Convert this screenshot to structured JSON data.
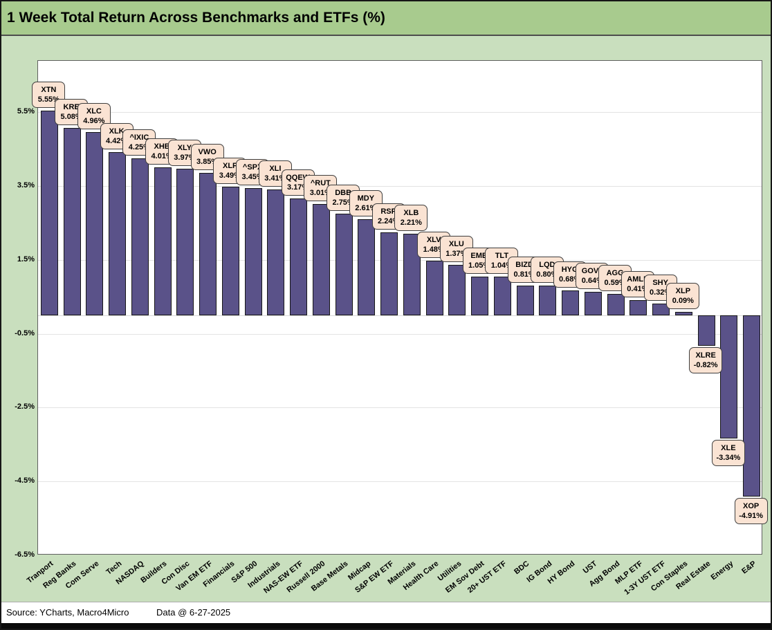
{
  "window": {
    "title": "1 Week Total Return Across Benchmarks and ETFs (%)"
  },
  "footer": {
    "source": "Source: YCharts, Macro4Micro",
    "data_date": "Data @ 6-27-2025"
  },
  "colors": {
    "title_bg": "#a8cb8e",
    "page_bg": "#c9dfbe",
    "plot_bg": "#ffffff",
    "bar_fill": "#5a5289",
    "bar_border": "#161616",
    "callout_bg": "#fae3d3",
    "callout_border": "#3e3e3e",
    "gridline": "#e3e3e3",
    "text": "#000000"
  },
  "chart_data": {
    "type": "bar",
    "title": "1 Week Total Return Across Benchmarks and ETFs (%)",
    "xlabel": "",
    "ylabel": "",
    "ylim": [
      -6.5,
      6.9
    ],
    "grid": true,
    "legend": false,
    "y_ticks": [
      {
        "label": "5.5%",
        "value": 5.5
      },
      {
        "label": "3.5%",
        "value": 3.5
      },
      {
        "label": "1.5%",
        "value": 1.5
      },
      {
        "label": "-0.5%",
        "value": -0.5
      },
      {
        "label": "-2.5%",
        "value": -2.5
      },
      {
        "label": "-4.5%",
        "value": -4.5
      },
      {
        "label": "-6.5%",
        "value": -6.5
      }
    ],
    "points": [
      {
        "category": "Tranport",
        "ticker": "XTN",
        "value": 5.55,
        "label": "5.55%"
      },
      {
        "category": "Reg Banks",
        "ticker": "KRE",
        "value": 5.08,
        "label": "5.08%"
      },
      {
        "category": "Com Serve",
        "ticker": "XLC",
        "value": 4.96,
        "label": "4.96%"
      },
      {
        "category": "Tech",
        "ticker": "XLK",
        "value": 4.42,
        "label": "4.42%"
      },
      {
        "category": "NASDAQ",
        "ticker": "^IXIC",
        "value": 4.25,
        "label": "4.25%"
      },
      {
        "category": "Builders",
        "ticker": "XHB",
        "value": 4.01,
        "label": "4.01%"
      },
      {
        "category": "Con Disc",
        "ticker": "XLY",
        "value": 3.97,
        "label": "3.97%"
      },
      {
        "category": "Van EM ETF",
        "ticker": "VWO",
        "value": 3.85,
        "label": "3.85%"
      },
      {
        "category": "Financials",
        "ticker": "XLF",
        "value": 3.49,
        "label": "3.49%"
      },
      {
        "category": "S&P 500",
        "ticker": "^SPX",
        "value": 3.45,
        "label": "3.45%"
      },
      {
        "category": "Industrials",
        "ticker": "XLI",
        "value": 3.41,
        "label": "3.41%"
      },
      {
        "category": "NAS-EW ETF",
        "ticker": "QQEW",
        "value": 3.17,
        "label": "3.17%"
      },
      {
        "category": "Russell 2000",
        "ticker": "^RUT",
        "value": 3.01,
        "label": "3.01%"
      },
      {
        "category": "Base Metals",
        "ticker": "DBB",
        "value": 2.75,
        "label": "2.75%"
      },
      {
        "category": "Midcap",
        "ticker": "MDY",
        "value": 2.61,
        "label": "2.61%"
      },
      {
        "category": "S&P EW ETF",
        "ticker": "RSP",
        "value": 2.24,
        "label": "2.24%"
      },
      {
        "category": "Materials",
        "ticker": "XLB",
        "value": 2.21,
        "label": "2.21%"
      },
      {
        "category": "Health Care",
        "ticker": "XLV",
        "value": 1.48,
        "label": "1.48%"
      },
      {
        "category": "Utilities",
        "ticker": "XLU",
        "value": 1.37,
        "label": "1.37%"
      },
      {
        "category": "EM Sov Debt",
        "ticker": "EMB",
        "value": 1.05,
        "label": "1.05%"
      },
      {
        "category": "20+ UST ETF",
        "ticker": "TLT",
        "value": 1.04,
        "label": "1.04%"
      },
      {
        "category": "BDC",
        "ticker": "BIZD",
        "value": 0.81,
        "label": "0.81%"
      },
      {
        "category": "IG Bond",
        "ticker": "LQD",
        "value": 0.8,
        "label": "0.80%"
      },
      {
        "category": "HY Bond",
        "ticker": "HYG",
        "value": 0.68,
        "label": "0.68%"
      },
      {
        "category": "UST",
        "ticker": "GOVT",
        "value": 0.64,
        "label": "0.64%"
      },
      {
        "category": "Agg Bond",
        "ticker": "AGG",
        "value": 0.59,
        "label": "0.59%"
      },
      {
        "category": "MLP ETF",
        "ticker": "AMLP",
        "value": 0.41,
        "label": "0.41%"
      },
      {
        "category": "1-3Y UST ETF",
        "ticker": "SHY",
        "value": 0.32,
        "label": "0.32%"
      },
      {
        "category": "Con Staples",
        "ticker": "XLP",
        "value": 0.09,
        "label": "0.09%"
      },
      {
        "category": "Real Estate",
        "ticker": "XLRE",
        "value": -0.82,
        "label": "-0.82%"
      },
      {
        "category": "Energy",
        "ticker": "XLE",
        "value": -3.34,
        "label": "-3.34%"
      },
      {
        "category": "E&P",
        "ticker": "XOP",
        "value": -4.91,
        "label": "-4.91%"
      }
    ]
  }
}
